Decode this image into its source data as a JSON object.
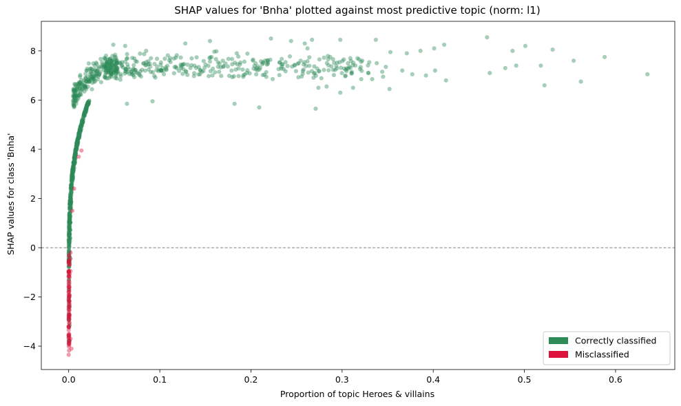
{
  "chart_data": {
    "type": "scatter",
    "title": "SHAP values for 'Bnha' plotted against most predictive topic (norm: l1)",
    "xlabel": "Proportion of topic Heroes & villains",
    "ylabel": "SHAP values for class 'Bnha'",
    "xlim": [
      -0.03,
      0.665
    ],
    "ylim": [
      -4.95,
      9.2
    ],
    "xticks": [
      0.0,
      0.1,
      0.2,
      0.3,
      0.4,
      0.5,
      0.6
    ],
    "xtick_labels": [
      "0.0",
      "0.1",
      "0.2",
      "0.3",
      "0.4",
      "0.5",
      "0.6"
    ],
    "yticks": [
      -4,
      -2,
      0,
      2,
      4,
      6,
      8
    ],
    "ytick_labels": [
      "−4",
      "−2",
      "0",
      "2",
      "4",
      "6",
      "8"
    ],
    "reference_line": {
      "y": 0,
      "style": "dashed",
      "color": "#808080"
    },
    "grid": false,
    "legend": {
      "placement": "lower-right",
      "entries": [
        {
          "label": "Correctly classified",
          "color": "#2e8b57"
        },
        {
          "label": "Misclassified",
          "color": "#dc143c"
        }
      ]
    },
    "series": [
      {
        "name": "Correctly classified",
        "color": "#2e8b57",
        "points": [
          [
            0.459,
            8.55
          ],
          [
            0.501,
            8.2
          ],
          [
            0.487,
            8.0
          ],
          [
            0.531,
            8.05
          ],
          [
            0.491,
            7.4
          ],
          [
            0.462,
            7.1
          ],
          [
            0.479,
            7.3
          ],
          [
            0.518,
            7.4
          ],
          [
            0.554,
            7.6
          ],
          [
            0.588,
            7.75
          ],
          [
            0.635,
            7.05
          ],
          [
            0.522,
            6.6
          ],
          [
            0.562,
            6.75
          ],
          [
            0.414,
            6.8
          ],
          [
            0.402,
            7.2
          ],
          [
            0.392,
            7.0
          ],
          [
            0.412,
            8.25
          ],
          [
            0.401,
            8.1
          ],
          [
            0.386,
            8.0
          ],
          [
            0.371,
            7.9
          ],
          [
            0.353,
            7.95
          ],
          [
            0.337,
            8.45
          ],
          [
            0.352,
            6.45
          ],
          [
            0.338,
            7.5
          ],
          [
            0.322,
            7.6
          ],
          [
            0.309,
            7.7
          ],
          [
            0.287,
            7.75
          ],
          [
            0.298,
            8.45
          ],
          [
            0.262,
            8.1
          ],
          [
            0.259,
            8.3
          ],
          [
            0.244,
            8.4
          ],
          [
            0.267,
            8.45
          ],
          [
            0.274,
            6.5
          ],
          [
            0.271,
            5.65
          ],
          [
            0.298,
            6.3
          ],
          [
            0.283,
            6.55
          ],
          [
            0.312,
            6.5
          ],
          [
            0.321,
            6.85
          ],
          [
            0.209,
            5.7
          ],
          [
            0.182,
            5.85
          ],
          [
            0.222,
            8.5
          ],
          [
            0.155,
            8.4
          ],
          [
            0.128,
            8.3
          ],
          [
            0.062,
            8.2
          ],
          [
            0.049,
            8.25
          ],
          [
            0.085,
            8.0
          ],
          [
            0.064,
            5.85
          ],
          [
            0.092,
            5.95
          ],
          [
            0.348,
            7.35
          ],
          [
            0.366,
            7.2
          ],
          [
            0.344,
            7.15
          ],
          [
            0.377,
            7.05
          ],
          [
            0.333,
            6.85
          ],
          [
            0.345,
            6.95
          ]
        ]
      },
      {
        "name": "Misclassified",
        "color": "#dc143c",
        "points": [
          [
            0.0,
            -4.35
          ],
          [
            0.001,
            -3.8
          ],
          [
            0.0,
            -3.55
          ],
          [
            0.0,
            -3.35
          ],
          [
            0.0,
            -3.2
          ],
          [
            0.001,
            -3.05
          ],
          [
            0.0,
            -2.9
          ],
          [
            0.001,
            -2.75
          ],
          [
            0.0,
            -2.5
          ],
          [
            0.001,
            -2.3
          ],
          [
            0.0,
            -2.1
          ],
          [
            0.001,
            -1.95
          ],
          [
            0.0,
            -1.8
          ],
          [
            0.001,
            -1.6
          ],
          [
            0.0,
            -1.45
          ],
          [
            0.001,
            -1.2
          ],
          [
            0.002,
            -0.95
          ],
          [
            0.001,
            -0.7
          ],
          [
            0.002,
            -0.45
          ],
          [
            0.002,
            -0.2
          ],
          [
            0.004,
            1.5
          ],
          [
            0.006,
            2.4
          ],
          [
            0.011,
            3.7
          ],
          [
            0.014,
            3.95
          ],
          [
            0.003,
            -4.1
          ],
          [
            0.002,
            -3.7
          ]
        ]
      }
    ]
  }
}
